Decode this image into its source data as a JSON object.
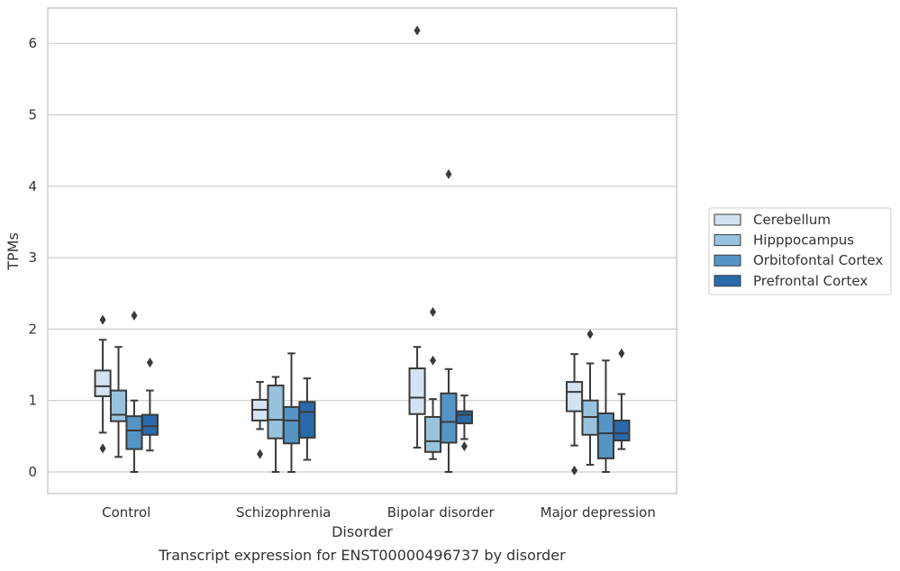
{
  "chart_data": {
    "type": "box",
    "title": "Transcript expression for ENST00000496737 by disorder",
    "xlabel": "Disorder",
    "ylabel": "TPMs",
    "ylim": [
      -0.3,
      6.5
    ],
    "yticks": [
      0,
      1,
      2,
      3,
      4,
      5,
      6
    ],
    "grid": "horizontal",
    "legend_position": "right",
    "categories": [
      "Control",
      "Schizophrenia",
      "Bipolar disorder",
      "Major depression"
    ],
    "series": [
      {
        "name": "Cerebellum",
        "color": "#d3e3f1",
        "boxes": [
          {
            "q1": 1.06,
            "median": 1.2,
            "q3": 1.42,
            "whisker_low": 0.55,
            "whisker_high": 1.85,
            "outliers": [
              2.13,
              0.33
            ]
          },
          {
            "q1": 0.72,
            "median": 0.87,
            "q3": 1.01,
            "whisker_low": 0.6,
            "whisker_high": 1.26,
            "outliers": [
              0.25
            ]
          },
          {
            "q1": 0.81,
            "median": 1.04,
            "q3": 1.45,
            "whisker_low": 0.34,
            "whisker_high": 1.75,
            "outliers": [
              6.18
            ]
          },
          {
            "q1": 0.85,
            "median": 1.12,
            "q3": 1.26,
            "whisker_low": 0.37,
            "whisker_high": 1.65,
            "outliers": [
              0.02
            ]
          }
        ]
      },
      {
        "name": "Hipppocampus",
        "color": "#98c3de",
        "boxes": [
          {
            "q1": 0.71,
            "median": 0.8,
            "q3": 1.14,
            "whisker_low": 0.21,
            "whisker_high": 1.75,
            "outliers": []
          },
          {
            "q1": 0.47,
            "median": 0.73,
            "q3": 1.21,
            "whisker_low": 0.0,
            "whisker_high": 1.33,
            "outliers": []
          },
          {
            "q1": 0.28,
            "median": 0.43,
            "q3": 0.77,
            "whisker_low": 0.18,
            "whisker_high": 1.02,
            "outliers": [
              2.24,
              1.56
            ]
          },
          {
            "q1": 0.52,
            "median": 0.77,
            "q3": 1.0,
            "whisker_low": 0.1,
            "whisker_high": 1.52,
            "outliers": [
              1.93
            ]
          }
        ]
      },
      {
        "name": "Orbitofontal Cortex",
        "color": "#5595c6",
        "boxes": [
          {
            "q1": 0.32,
            "median": 0.58,
            "q3": 0.78,
            "whisker_low": 0.0,
            "whisker_high": 1.0,
            "outliers": [
              2.19
            ]
          },
          {
            "q1": 0.4,
            "median": 0.72,
            "q3": 0.91,
            "whisker_low": 0.0,
            "whisker_high": 1.66,
            "outliers": []
          },
          {
            "q1": 0.41,
            "median": 0.7,
            "q3": 1.1,
            "whisker_low": 0.0,
            "whisker_high": 1.44,
            "outliers": [
              4.17
            ]
          },
          {
            "q1": 0.19,
            "median": 0.54,
            "q3": 0.82,
            "whisker_low": 0.0,
            "whisker_high": 1.56,
            "outliers": []
          }
        ]
      },
      {
        "name": "Prefrontal Cortex",
        "color": "#2a6aaa",
        "boxes": [
          {
            "q1": 0.52,
            "median": 0.64,
            "q3": 0.8,
            "whisker_low": 0.3,
            "whisker_high": 1.14,
            "outliers": [
              1.53
            ]
          },
          {
            "q1": 0.48,
            "median": 0.84,
            "q3": 0.98,
            "whisker_low": 0.17,
            "whisker_high": 1.31,
            "outliers": []
          },
          {
            "q1": 0.68,
            "median": 0.8,
            "q3": 0.85,
            "whisker_low": 0.46,
            "whisker_high": 1.07,
            "outliers": [
              0.36
            ]
          },
          {
            "q1": 0.44,
            "median": 0.54,
            "q3": 0.72,
            "whisker_low": 0.32,
            "whisker_high": 1.09,
            "outliers": [
              1.66
            ]
          }
        ]
      }
    ]
  }
}
